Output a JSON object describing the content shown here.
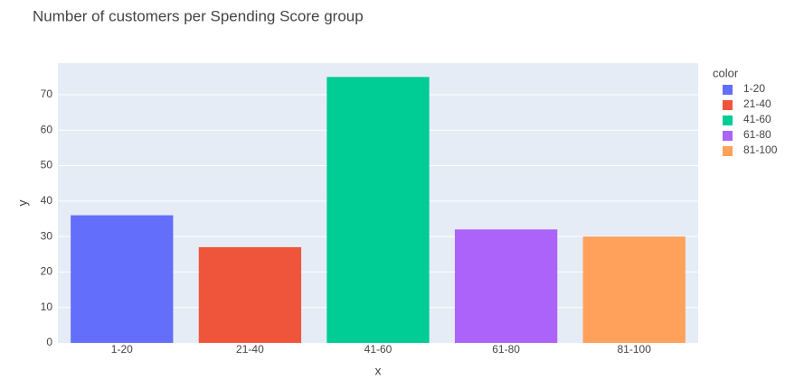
{
  "chart_data": {
    "type": "bar",
    "title": "Number of customers per Spending Score group",
    "categories": [
      "1-20",
      "21-40",
      "41-60",
      "61-80",
      "81-100"
    ],
    "series": [
      {
        "name": "1-20",
        "color": "#636efa",
        "values": [
          36,
          null,
          null,
          null,
          null
        ]
      },
      {
        "name": "21-40",
        "color": "#ef553b",
        "values": [
          null,
          27,
          null,
          null,
          null
        ]
      },
      {
        "name": "41-60",
        "color": "#00cc96",
        "values": [
          null,
          null,
          75,
          null,
          null
        ]
      },
      {
        "name": "61-80",
        "color": "#ab63fa",
        "values": [
          null,
          null,
          null,
          32,
          null
        ]
      },
      {
        "name": "81-100",
        "color": "#ffa15a",
        "values": [
          null,
          null,
          null,
          null,
          30
        ]
      }
    ],
    "x_label": "x",
    "y_label": "y",
    "legend_title": "color",
    "ylim": [
      0,
      78.9
    ],
    "yticks": [
      0,
      10,
      20,
      30,
      40,
      50,
      60,
      70
    ],
    "grid": true
  }
}
